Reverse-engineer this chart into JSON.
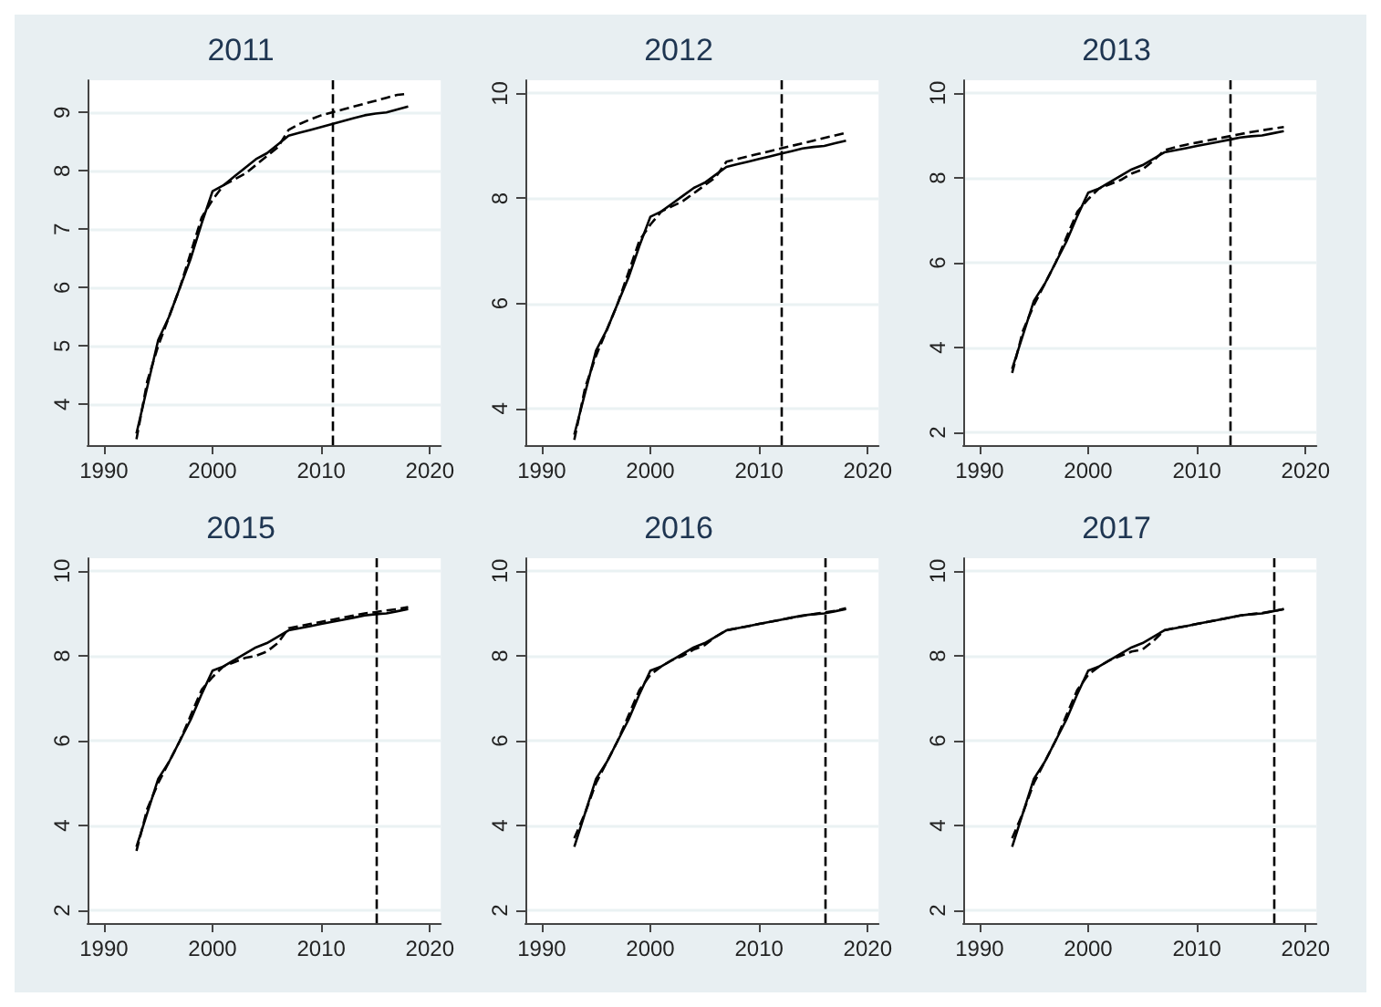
{
  "chart_data": [
    {
      "type": "line",
      "title": "2011",
      "x": [
        1993,
        1994,
        1995,
        1996,
        1997,
        1998,
        1999,
        2000,
        2001,
        2002,
        2003,
        2004,
        2005,
        2006,
        2007,
        2008,
        2009,
        2010,
        2011,
        2012,
        2013,
        2014,
        2015,
        2016,
        2017,
        2018
      ],
      "series": [
        {
          "color": "#000000",
          "line_style": "solid",
          "values": [
            3.5,
            4.3,
            5.1,
            5.5,
            6.0,
            6.5,
            7.1,
            7.65,
            7.75,
            7.9,
            8.05,
            8.2,
            8.3,
            8.45,
            8.6,
            8.65,
            8.7,
            8.75,
            8.8,
            8.85,
            8.9,
            8.95,
            8.98,
            9.0,
            9.05,
            9.1
          ]
        },
        {
          "color": "#000000",
          "line_style": "dashed",
          "values": [
            3.4,
            4.4,
            5.0,
            5.5,
            6.0,
            6.6,
            7.2,
            7.5,
            7.75,
            7.85,
            7.95,
            8.1,
            8.25,
            8.4,
            8.7,
            8.8,
            8.88,
            8.95,
            9.0,
            9.05,
            9.1,
            9.15,
            9.2,
            9.25,
            9.3,
            9.32
          ]
        }
      ],
      "xlim": [
        1988.5,
        2021
      ],
      "xticks": [
        1990,
        2000,
        2010,
        2020
      ],
      "ylim": [
        3.3,
        9.55
      ],
      "yticks": [
        4,
        5,
        6,
        7,
        8,
        9
      ],
      "grid": "y",
      "marker": "none",
      "ref_lines": [
        {
          "axis": "x",
          "value": 2011,
          "line_style": "dashed",
          "color": "#000000"
        }
      ]
    },
    {
      "type": "line",
      "title": "2012",
      "x": [
        1993,
        1994,
        1995,
        1996,
        1997,
        1998,
        1999,
        2000,
        2001,
        2002,
        2003,
        2004,
        2005,
        2006,
        2007,
        2008,
        2009,
        2010,
        2011,
        2012,
        2013,
        2014,
        2015,
        2016,
        2017,
        2018
      ],
      "series": [
        {
          "color": "#000000",
          "line_style": "solid",
          "values": [
            3.5,
            4.3,
            5.1,
            5.5,
            6.0,
            6.5,
            7.1,
            7.65,
            7.75,
            7.9,
            8.05,
            8.2,
            8.3,
            8.45,
            8.6,
            8.65,
            8.7,
            8.75,
            8.8,
            8.85,
            8.9,
            8.95,
            8.98,
            9.0,
            9.05,
            9.1
          ]
        },
        {
          "color": "#000000",
          "line_style": "dashed",
          "values": [
            3.4,
            4.4,
            5.0,
            5.5,
            6.0,
            6.6,
            7.2,
            7.5,
            7.75,
            7.85,
            7.95,
            8.1,
            8.25,
            8.4,
            8.7,
            8.75,
            8.8,
            8.85,
            8.9,
            8.95,
            9.0,
            9.05,
            9.1,
            9.15,
            9.2,
            9.25
          ]
        }
      ],
      "xlim": [
        1988.5,
        2021
      ],
      "xticks": [
        1990,
        2000,
        2010,
        2020
      ],
      "ylim": [
        3.3,
        10.25
      ],
      "yticks": [
        4,
        6,
        8,
        10
      ],
      "grid": "y",
      "marker": "none",
      "ref_lines": [
        {
          "axis": "x",
          "value": 2012,
          "line_style": "dashed",
          "color": "#000000"
        }
      ]
    },
    {
      "type": "line",
      "title": "2013",
      "x": [
        1993,
        1994,
        1995,
        1996,
        1997,
        1998,
        1999,
        2000,
        2001,
        2002,
        2003,
        2004,
        2005,
        2006,
        2007,
        2008,
        2009,
        2010,
        2011,
        2012,
        2013,
        2014,
        2015,
        2016,
        2017,
        2018
      ],
      "series": [
        {
          "color": "#000000",
          "line_style": "solid",
          "values": [
            3.5,
            4.3,
            5.1,
            5.5,
            6.0,
            6.5,
            7.1,
            7.65,
            7.75,
            7.9,
            8.05,
            8.2,
            8.3,
            8.45,
            8.6,
            8.65,
            8.7,
            8.75,
            8.8,
            8.85,
            8.9,
            8.95,
            8.98,
            9.0,
            9.05,
            9.1
          ]
        },
        {
          "color": "#000000",
          "line_style": "dashed",
          "values": [
            3.4,
            4.4,
            5.0,
            5.5,
            6.0,
            6.6,
            7.2,
            7.5,
            7.75,
            7.85,
            7.95,
            8.1,
            8.2,
            8.4,
            8.65,
            8.72,
            8.78,
            8.83,
            8.88,
            8.93,
            8.98,
            9.03,
            9.08,
            9.12,
            9.16,
            9.2
          ]
        }
      ],
      "xlim": [
        1988.5,
        2021
      ],
      "xticks": [
        1990,
        2000,
        2010,
        2020
      ],
      "ylim": [
        1.7,
        10.3
      ],
      "yticks": [
        2,
        4,
        6,
        8,
        10
      ],
      "grid": "y",
      "marker": "none",
      "ref_lines": [
        {
          "axis": "x",
          "value": 2013,
          "line_style": "dashed",
          "color": "#000000"
        }
      ]
    },
    {
      "type": "line",
      "title": "2015",
      "x": [
        1993,
        1994,
        1995,
        1996,
        1997,
        1998,
        1999,
        2000,
        2001,
        2002,
        2003,
        2004,
        2005,
        2006,
        2007,
        2008,
        2009,
        2010,
        2011,
        2012,
        2013,
        2014,
        2015,
        2016,
        2017,
        2018
      ],
      "series": [
        {
          "color": "#000000",
          "line_style": "solid",
          "values": [
            3.5,
            4.3,
            5.1,
            5.5,
            6.0,
            6.5,
            7.1,
            7.65,
            7.75,
            7.9,
            8.05,
            8.2,
            8.3,
            8.45,
            8.6,
            8.65,
            8.7,
            8.75,
            8.8,
            8.85,
            8.9,
            8.95,
            8.98,
            9.0,
            9.05,
            9.1
          ]
        },
        {
          "color": "#000000",
          "line_style": "dashed",
          "values": [
            3.4,
            4.4,
            5.0,
            5.5,
            6.0,
            6.6,
            7.2,
            7.5,
            7.75,
            7.85,
            7.95,
            8.0,
            8.1,
            8.3,
            8.65,
            8.7,
            8.75,
            8.8,
            8.85,
            8.9,
            8.95,
            9.0,
            9.03,
            9.07,
            9.1,
            9.15
          ]
        }
      ],
      "xlim": [
        1988.5,
        2021
      ],
      "xticks": [
        1990,
        2000,
        2010,
        2020
      ],
      "ylim": [
        1.7,
        10.3
      ],
      "yticks": [
        2,
        4,
        6,
        8,
        10
      ],
      "grid": "y",
      "marker": "none",
      "ref_lines": [
        {
          "axis": "x",
          "value": 2015,
          "line_style": "dashed",
          "color": "#000000"
        }
      ]
    },
    {
      "type": "line",
      "title": "2016",
      "x": [
        1993,
        1994,
        1995,
        1996,
        1997,
        1998,
        1999,
        2000,
        2001,
        2002,
        2003,
        2004,
        2005,
        2006,
        2007,
        2008,
        2009,
        2010,
        2011,
        2012,
        2013,
        2014,
        2015,
        2016,
        2017,
        2018
      ],
      "series": [
        {
          "color": "#000000",
          "line_style": "solid",
          "values": [
            3.5,
            4.3,
            5.1,
            5.5,
            6.0,
            6.5,
            7.1,
            7.65,
            7.75,
            7.9,
            8.05,
            8.2,
            8.3,
            8.45,
            8.6,
            8.65,
            8.7,
            8.75,
            8.8,
            8.85,
            8.9,
            8.95,
            8.98,
            9.0,
            9.05,
            9.1
          ]
        },
        {
          "color": "#000000",
          "line_style": "dashed",
          "values": [
            3.7,
            4.3,
            5.0,
            5.5,
            6.0,
            6.6,
            7.2,
            7.55,
            7.75,
            7.9,
            8.0,
            8.15,
            8.25,
            8.45,
            8.6,
            8.65,
            8.7,
            8.75,
            8.8,
            8.85,
            8.9,
            8.94,
            8.98,
            9.02,
            9.06,
            9.12
          ]
        }
      ],
      "xlim": [
        1988.5,
        2021
      ],
      "xticks": [
        1990,
        2000,
        2010,
        2020
      ],
      "ylim": [
        1.7,
        10.3
      ],
      "yticks": [
        2,
        4,
        6,
        8,
        10
      ],
      "grid": "y",
      "marker": "none",
      "ref_lines": [
        {
          "axis": "x",
          "value": 2016,
          "line_style": "dashed",
          "color": "#000000"
        }
      ]
    },
    {
      "type": "line",
      "title": "2017",
      "x": [
        1993,
        1994,
        1995,
        1996,
        1997,
        1998,
        1999,
        2000,
        2001,
        2002,
        2003,
        2004,
        2005,
        2006,
        2007,
        2008,
        2009,
        2010,
        2011,
        2012,
        2013,
        2014,
        2015,
        2016,
        2017,
        2018
      ],
      "series": [
        {
          "color": "#000000",
          "line_style": "solid",
          "values": [
            3.5,
            4.3,
            5.1,
            5.5,
            6.0,
            6.5,
            7.1,
            7.65,
            7.75,
            7.9,
            8.05,
            8.2,
            8.3,
            8.45,
            8.6,
            8.65,
            8.7,
            8.75,
            8.8,
            8.85,
            8.9,
            8.95,
            8.98,
            9.0,
            9.05,
            9.1
          ]
        },
        {
          "color": "#000000",
          "line_style": "dashed",
          "values": [
            3.7,
            4.3,
            5.0,
            5.5,
            6.0,
            6.6,
            7.2,
            7.55,
            7.75,
            7.9,
            8.0,
            8.1,
            8.15,
            8.35,
            8.6,
            8.66,
            8.7,
            8.75,
            8.8,
            8.85,
            8.9,
            8.95,
            8.98,
            9.01,
            9.05,
            9.1
          ]
        }
      ],
      "xlim": [
        1988.5,
        2021
      ],
      "xticks": [
        1990,
        2000,
        2010,
        2020
      ],
      "ylim": [
        1.7,
        10.3
      ],
      "yticks": [
        2,
        4,
        6,
        8,
        10
      ],
      "grid": "y",
      "marker": "none",
      "ref_lines": [
        {
          "axis": "x",
          "value": 2017,
          "line_style": "dashed",
          "color": "#000000"
        }
      ]
    }
  ]
}
